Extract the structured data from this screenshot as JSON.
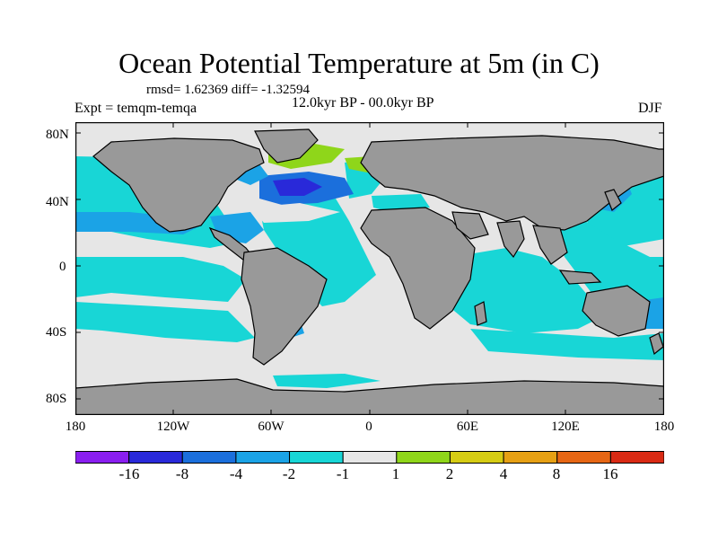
{
  "title": "Ocean Potential Temperature at 5m (in C)",
  "stats_line": "rmsd= 1.62369 diff= -1.32594",
  "experiment_label": "Expt = temqm-temqa",
  "period_label": "12.0kyr BP - 00.0kyr BP",
  "season_label": "DJF",
  "axes": {
    "y_ticks": [
      "80N",
      "40N",
      "0",
      "40S",
      "80S"
    ],
    "x_ticks": [
      "180",
      "120W",
      "60W",
      "0",
      "60E",
      "120E",
      "180"
    ]
  },
  "colorbar": {
    "labels": [
      "-16",
      "-8",
      "-4",
      "-2",
      "-1",
      "1",
      "2",
      "4",
      "8",
      "16"
    ],
    "colors": [
      "#8a1ff0",
      "#2929d9",
      "#1b6fdc",
      "#1ba3e6",
      "#18d6d6",
      "#e6e6e6",
      "#8fd61a",
      "#d6cc14",
      "#e6a014",
      "#e66614",
      "#d92a14"
    ]
  },
  "map_colors": {
    "land": "#999999",
    "neutral": "#e6e6e6",
    "cool_1": "#18d6d6",
    "cool_2": "#1ba3e6",
    "cool_3": "#1b6fdc",
    "cool_4": "#2929d9",
    "warm_1": "#8fd61a",
    "warm_2": "#d6cc14"
  }
}
